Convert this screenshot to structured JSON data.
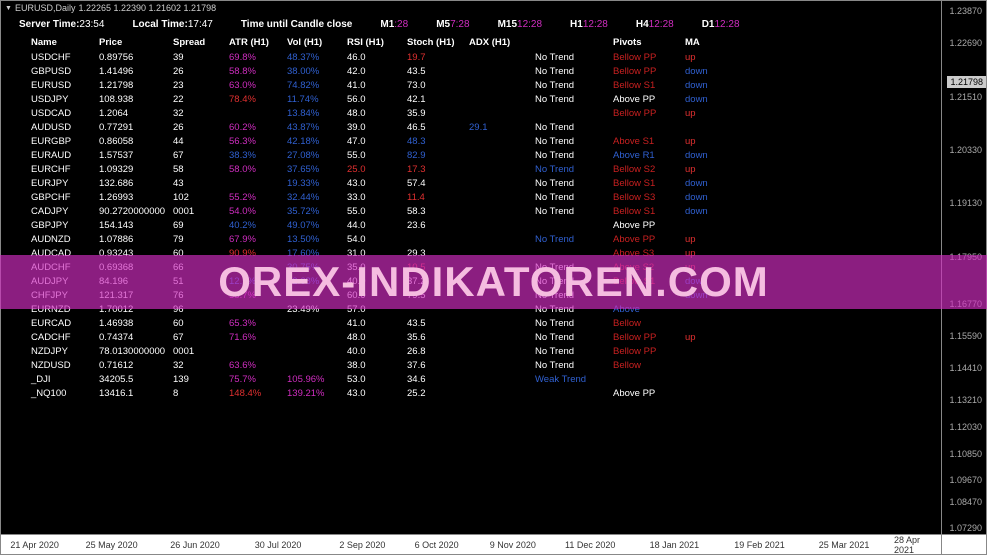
{
  "titlebar": {
    "symbol": "EURUSD,Daily",
    "ohlc": "1.22265 1.22390 1.21602 1.21798"
  },
  "info": {
    "server_label": "Server Time:",
    "server_val": "23:54",
    "local_label": "Local Time:",
    "local_val": "17:47",
    "until_label": "Time until Candle close",
    "tf": [
      {
        "k": "M1",
        "v": ":28"
      },
      {
        "k": "M5",
        "v": "7:28"
      },
      {
        "k": "M15",
        "v": "12:28"
      },
      {
        "k": "H1",
        "v": "12:28"
      },
      {
        "k": "H4",
        "v": "12:28"
      },
      {
        "k": "D1",
        "v": "12:28"
      }
    ]
  },
  "headers": [
    "Name",
    "Price",
    "Spread",
    "ATR (H1)",
    "Vol (H1)",
    "RSI (H1)",
    "Stoch (H1)",
    "ADX (H1)",
    "",
    "Pivots",
    "MA"
  ],
  "rows": [
    {
      "name": "USDCHF",
      "price": "0.89756",
      "spread": "39",
      "atr": "69.8%",
      "atr_c": "magenta",
      "vol": "48.37%",
      "vol_c": "blue",
      "rsi": "46.0",
      "rsi_c": "white",
      "stoch": "19.7",
      "stoch_c": "red",
      "adx": "",
      "adx_c": "white",
      "trend": "No Trend",
      "trend_c": "white",
      "piv": "Bellow PP",
      "piv_c": "darkred",
      "ma": "up",
      "ma_c": "red"
    },
    {
      "name": "GBPUSD",
      "price": "1.41496",
      "spread": "26",
      "atr": "58.8%",
      "atr_c": "magenta",
      "vol": "38.00%",
      "vol_c": "blue",
      "rsi": "42.0",
      "rsi_c": "white",
      "stoch": "43.5",
      "stoch_c": "white",
      "adx": "",
      "adx_c": "white",
      "trend": "No Trend",
      "trend_c": "white",
      "piv": "Bellow PP",
      "piv_c": "darkred",
      "ma": "down",
      "ma_c": "blue"
    },
    {
      "name": "EURUSD",
      "price": "1.21798",
      "spread": "23",
      "atr": "63.0%",
      "atr_c": "magenta",
      "vol": "74.82%",
      "vol_c": "blue",
      "rsi": "41.0",
      "rsi_c": "white",
      "stoch": "73.0",
      "stoch_c": "white",
      "adx": "",
      "adx_c": "white",
      "trend": "No Trend",
      "trend_c": "white",
      "piv": "Bellow S1",
      "piv_c": "darkred",
      "ma": "down",
      "ma_c": "blue"
    },
    {
      "name": "USDJPY",
      "price": "108.938",
      "spread": "22",
      "atr": "78.4%",
      "atr_c": "red",
      "vol": "11.74%",
      "vol_c": "blue",
      "rsi": "56.0",
      "rsi_c": "white",
      "stoch": "42.1",
      "stoch_c": "white",
      "adx": "",
      "adx_c": "white",
      "trend": "No Trend",
      "trend_c": "white",
      "piv": "Above PP",
      "piv_c": "white",
      "ma": "down",
      "ma_c": "blue"
    },
    {
      "name": "USDCAD",
      "price": "1.2064",
      "spread": "32",
      "atr": "",
      "atr_c": "white",
      "vol": "13.84%",
      "vol_c": "blue",
      "rsi": "48.0",
      "rsi_c": "white",
      "stoch": "35.9",
      "stoch_c": "white",
      "adx": "",
      "adx_c": "white",
      "trend": "",
      "trend_c": "white",
      "piv": "Bellow PP",
      "piv_c": "darkred",
      "ma": "up",
      "ma_c": "red"
    },
    {
      "name": "AUDUSD",
      "price": "0.77291",
      "spread": "26",
      "atr": "60.2%",
      "atr_c": "magenta",
      "vol": "43.87%",
      "vol_c": "blue",
      "rsi": "39.0",
      "rsi_c": "white",
      "stoch": "46.5",
      "stoch_c": "white",
      "adx": "29.1",
      "adx_c": "blue",
      "trend": "No Trend",
      "trend_c": "white",
      "piv": "",
      "piv_c": "white",
      "ma": "",
      "ma_c": "white"
    },
    {
      "name": "EURGBP",
      "price": "0.86058",
      "spread": "44",
      "atr": "56.3%",
      "atr_c": "magenta",
      "vol": "42.18%",
      "vol_c": "blue",
      "rsi": "47.0",
      "rsi_c": "white",
      "stoch": "48.3",
      "stoch_c": "blue",
      "adx": "",
      "adx_c": "white",
      "trend": "No Trend",
      "trend_c": "white",
      "piv": "Above S1",
      "piv_c": "darkred",
      "ma": "up",
      "ma_c": "red"
    },
    {
      "name": "EURAUD",
      "price": "1.57537",
      "spread": "67",
      "atr": "38.3%",
      "atr_c": "blue",
      "vol": "27.08%",
      "vol_c": "blue",
      "rsi": "55.0",
      "rsi_c": "white",
      "stoch": "82.9",
      "stoch_c": "blue",
      "adx": "",
      "adx_c": "white",
      "trend": "No Trend",
      "trend_c": "white",
      "piv": "Above R1",
      "piv_c": "blue",
      "ma": "down",
      "ma_c": "blue"
    },
    {
      "name": "EURCHF",
      "price": "1.09329",
      "spread": "58",
      "atr": "58.0%",
      "atr_c": "magenta",
      "vol": "37.65%",
      "vol_c": "blue",
      "rsi": "25.0",
      "rsi_c": "red",
      "stoch": "17.3",
      "stoch_c": "red",
      "adx": "",
      "adx_c": "white",
      "trend": "No Trend",
      "trend_c": "blue",
      "piv": "Bellow S2",
      "piv_c": "darkred",
      "ma": "up",
      "ma_c": "red"
    },
    {
      "name": "EURJPY",
      "price": "132.686",
      "spread": "43",
      "atr": "",
      "atr_c": "white",
      "vol": "19.33%",
      "vol_c": "blue",
      "rsi": "43.0",
      "rsi_c": "white",
      "stoch": "57.4",
      "stoch_c": "white",
      "adx": "",
      "adx_c": "white",
      "trend": "No Trend",
      "trend_c": "white",
      "piv": "Bellow S1",
      "piv_c": "darkred",
      "ma": "down",
      "ma_c": "blue"
    },
    {
      "name": "GBPCHF",
      "price": "1.26993",
      "spread": "102",
      "atr": "55.2%",
      "atr_c": "magenta",
      "vol": "32.44%",
      "vol_c": "blue",
      "rsi": "33.0",
      "rsi_c": "white",
      "stoch": "11.4",
      "stoch_c": "red",
      "adx": "",
      "adx_c": "white",
      "trend": "No Trend",
      "trend_c": "white",
      "piv": "Bellow S3",
      "piv_c": "darkred",
      "ma": "down",
      "ma_c": "blue"
    },
    {
      "name": "CADJPY",
      "price": "90.2720000000",
      "spread": "0001",
      "spread_prefix": "00",
      "atr": "54.0%",
      "atr_c": "magenta",
      "vol": "35.72%",
      "vol_c": "blue",
      "rsi": "55.0",
      "rsi_c": "white",
      "stoch": "58.3",
      "stoch_c": "white",
      "adx": "",
      "adx_c": "white",
      "trend": "No Trend",
      "trend_c": "white",
      "piv": "Bellow S1",
      "piv_c": "darkred",
      "ma": "down",
      "ma_c": "blue"
    },
    {
      "name": "GBPJPY",
      "price": "154.143",
      "spread": "69",
      "atr": "40.2%",
      "atr_c": "blue",
      "vol": "49.07%",
      "vol_c": "blue",
      "rsi": "44.0",
      "rsi_c": "white",
      "stoch": "23.6",
      "stoch_c": "white",
      "adx": "",
      "adx_c": "white",
      "trend": "",
      "trend_c": "white",
      "piv": "Above PP",
      "piv_c": "white",
      "ma": "",
      "ma_c": "white"
    },
    {
      "name": "AUDNZD",
      "price": "1.07886",
      "spread": "79",
      "atr": "67.9%",
      "atr_c": "magenta",
      "vol": "13.50%",
      "vol_c": "blue",
      "rsi": "54.0",
      "rsi_c": "white",
      "stoch": "",
      "stoch_c": "white",
      "adx": "",
      "adx_c": "white",
      "trend": "No Trend",
      "trend_c": "blue",
      "piv": "Above PP",
      "piv_c": "darkred",
      "ma": "up",
      "ma_c": "red"
    },
    {
      "name": "AUDCAD",
      "price": "0.93243",
      "spread": "60",
      "atr": "90.9%",
      "atr_c": "red",
      "vol": "17.60%",
      "vol_c": "blue",
      "rsi": "31.0",
      "rsi_c": "white",
      "stoch": "29.3",
      "stoch_c": "white",
      "adx": "",
      "adx_c": "white",
      "trend": "",
      "trend_c": "white",
      "piv": "Above S3",
      "piv_c": "darkred",
      "ma": "up",
      "ma_c": "red"
    },
    {
      "name": "AUDCHF",
      "price": "0.69368",
      "spread": "66",
      "atr": "",
      "atr_c": "white",
      "vol": "30.75%",
      "vol_c": "blue",
      "rsi": "35.0",
      "rsi_c": "white",
      "stoch": "10.5",
      "stoch_c": "red",
      "adx": "",
      "adx_c": "white",
      "trend": "No Trend",
      "trend_c": "white",
      "piv": "Above S2",
      "piv_c": "darkred",
      "ma": "up",
      "ma_c": "red"
    },
    {
      "name": "AUDJPY",
      "price": "84.196",
      "spread": "51",
      "atr": "12.7%",
      "atr_c": "blue",
      "vol": "22.68%",
      "vol_c": "blue",
      "rsi": "40.0",
      "rsi_c": "white",
      "stoch": "37.2",
      "stoch_c": "white",
      "adx": "",
      "adx_c": "white",
      "trend": "No Trend",
      "trend_c": "white",
      "piv": "Bellow S1",
      "piv_c": "darkred",
      "ma": "down",
      "ma_c": "blue"
    },
    {
      "name": "CHFJPY",
      "price": "121.317",
      "spread": "76",
      "atr": "58.7%",
      "atr_c": "magenta",
      "vol": "",
      "vol_c": "white",
      "rsi": "60.0",
      "rsi_c": "white",
      "stoch": "79.5",
      "stoch_c": "white",
      "adx": "",
      "adx_c": "white",
      "trend": "No Trend",
      "trend_c": "white",
      "piv": "",
      "piv_c": "blue",
      "ma": "down",
      "ma_c": "blue"
    },
    {
      "name": "EURNZD",
      "price": "1.70012",
      "spread": "96",
      "atr": "",
      "atr_c": "white",
      "vol": "23.49%",
      "vol_c": "white",
      "rsi": "57.0",
      "rsi_c": "white",
      "stoch": "",
      "stoch_c": "white",
      "adx": "",
      "adx_c": "white",
      "trend": "No Trend",
      "trend_c": "white",
      "piv": "Above",
      "piv_c": "blue",
      "ma": "",
      "ma_c": "white"
    },
    {
      "name": "EURCAD",
      "price": "1.46938",
      "spread": "60",
      "atr": "65.3%",
      "atr_c": "magenta",
      "vol": "",
      "vol_c": "white",
      "rsi": "41.0",
      "rsi_c": "white",
      "stoch": "43.5",
      "stoch_c": "white",
      "adx": "",
      "adx_c": "white",
      "trend": "No Trend",
      "trend_c": "white",
      "piv": "Bellow",
      "piv_c": "darkred",
      "ma": "",
      "ma_c": "white"
    },
    {
      "name": "CADCHF",
      "price": "0.74374",
      "spread": "67",
      "atr": "71.6%",
      "atr_c": "magenta",
      "vol": "",
      "vol_c": "white",
      "rsi": "48.0",
      "rsi_c": "white",
      "stoch": "35.6",
      "stoch_c": "white",
      "adx": "",
      "adx_c": "white",
      "trend": "No Trend",
      "trend_c": "white",
      "piv": "Bellow PP",
      "piv_c": "darkred",
      "ma": "up",
      "ma_c": "red"
    },
    {
      "name": "NZDJPY",
      "price": "78.0130000000",
      "spread": "0001",
      "atr": "",
      "atr_c": "white",
      "vol": "",
      "vol_c": "white",
      "rsi": "40.0",
      "rsi_c": "white",
      "stoch": "26.8",
      "stoch_c": "white",
      "adx": "",
      "adx_c": "white",
      "trend": "No Trend",
      "trend_c": "white",
      "piv": "Bellow PP",
      "piv_c": "darkred",
      "ma": "",
      "ma_c": "white"
    },
    {
      "name": "NZDUSD",
      "price": "0.71612",
      "spread": "32",
      "atr": "63.6%",
      "atr_c": "magenta",
      "vol": "",
      "vol_c": "white",
      "rsi": "38.0",
      "rsi_c": "white",
      "stoch": "37.6",
      "stoch_c": "white",
      "adx": "",
      "adx_c": "white",
      "trend": "No Trend",
      "trend_c": "white",
      "piv": "Bellow",
      "piv_c": "darkred",
      "ma": "",
      "ma_c": "white"
    },
    {
      "name": "_DJI",
      "price": "34205.5",
      "spread": "139",
      "atr": "75.7%",
      "atr_c": "magenta",
      "vol": "105.96%",
      "vol_c": "magenta",
      "rsi": "53.0",
      "rsi_c": "white",
      "stoch": "34.6",
      "stoch_c": "white",
      "adx": "",
      "adx_c": "white",
      "trend": "Weak Trend",
      "trend_c": "blue",
      "piv": "",
      "piv_c": "blue",
      "ma": "",
      "ma_c": "white"
    },
    {
      "name": "_NQ100",
      "price": "13416.1",
      "spread": "8",
      "atr": "148.4%",
      "atr_c": "red",
      "vol": "139.21%",
      "vol_c": "magenta",
      "rsi": "43.0",
      "rsi_c": "white",
      "stoch": "25.2",
      "stoch_c": "white",
      "adx": "",
      "adx_c": "white",
      "trend": "",
      "trend_c": "white",
      "piv": "Above PP",
      "piv_c": "white",
      "ma": "",
      "ma_c": "white"
    }
  ],
  "yaxis": {
    "ticks": [
      {
        "v": "1.23870",
        "p": 1
      },
      {
        "v": "1.22690",
        "p": 7
      },
      {
        "v": "1.21510",
        "p": 17
      },
      {
        "v": "1.20330",
        "p": 27
      },
      {
        "v": "1.19130",
        "p": 37
      },
      {
        "v": "1.17950",
        "p": 47
      },
      {
        "v": "1.16770",
        "p": 56
      },
      {
        "v": "1.15590",
        "p": 62
      },
      {
        "v": "1.14410",
        "p": 68
      },
      {
        "v": "1.13210",
        "p": 74
      },
      {
        "v": "1.12030",
        "p": 79
      },
      {
        "v": "1.10850",
        "p": 84
      },
      {
        "v": "1.09670",
        "p": 89
      },
      {
        "v": "1.08470",
        "p": 93
      },
      {
        "v": "1.07290",
        "p": 98
      }
    ],
    "marker": {
      "v": "1.21798",
      "p": 14
    }
  },
  "xaxis": [
    {
      "v": "21 Apr 2020",
      "p": 1
    },
    {
      "v": "25 May 2020",
      "p": 9
    },
    {
      "v": "26 Jun 2020",
      "p": 18
    },
    {
      "v": "30 Jul 2020",
      "p": 27
    },
    {
      "v": "2 Sep 2020",
      "p": 36
    },
    {
      "v": "6 Oct 2020",
      "p": 44
    },
    {
      "v": "9 Nov 2020",
      "p": 52
    },
    {
      "v": "11 Dec 2020",
      "p": 60
    },
    {
      "v": "18 Jan 2021",
      "p": 69
    },
    {
      "v": "19 Feb 2021",
      "p": 78
    },
    {
      "v": "25 Mar 2021",
      "p": 87
    },
    {
      "v": "28 Apr 2021",
      "p": 95
    }
  ],
  "watermark": "OREX-INDIKATOREN.COM"
}
